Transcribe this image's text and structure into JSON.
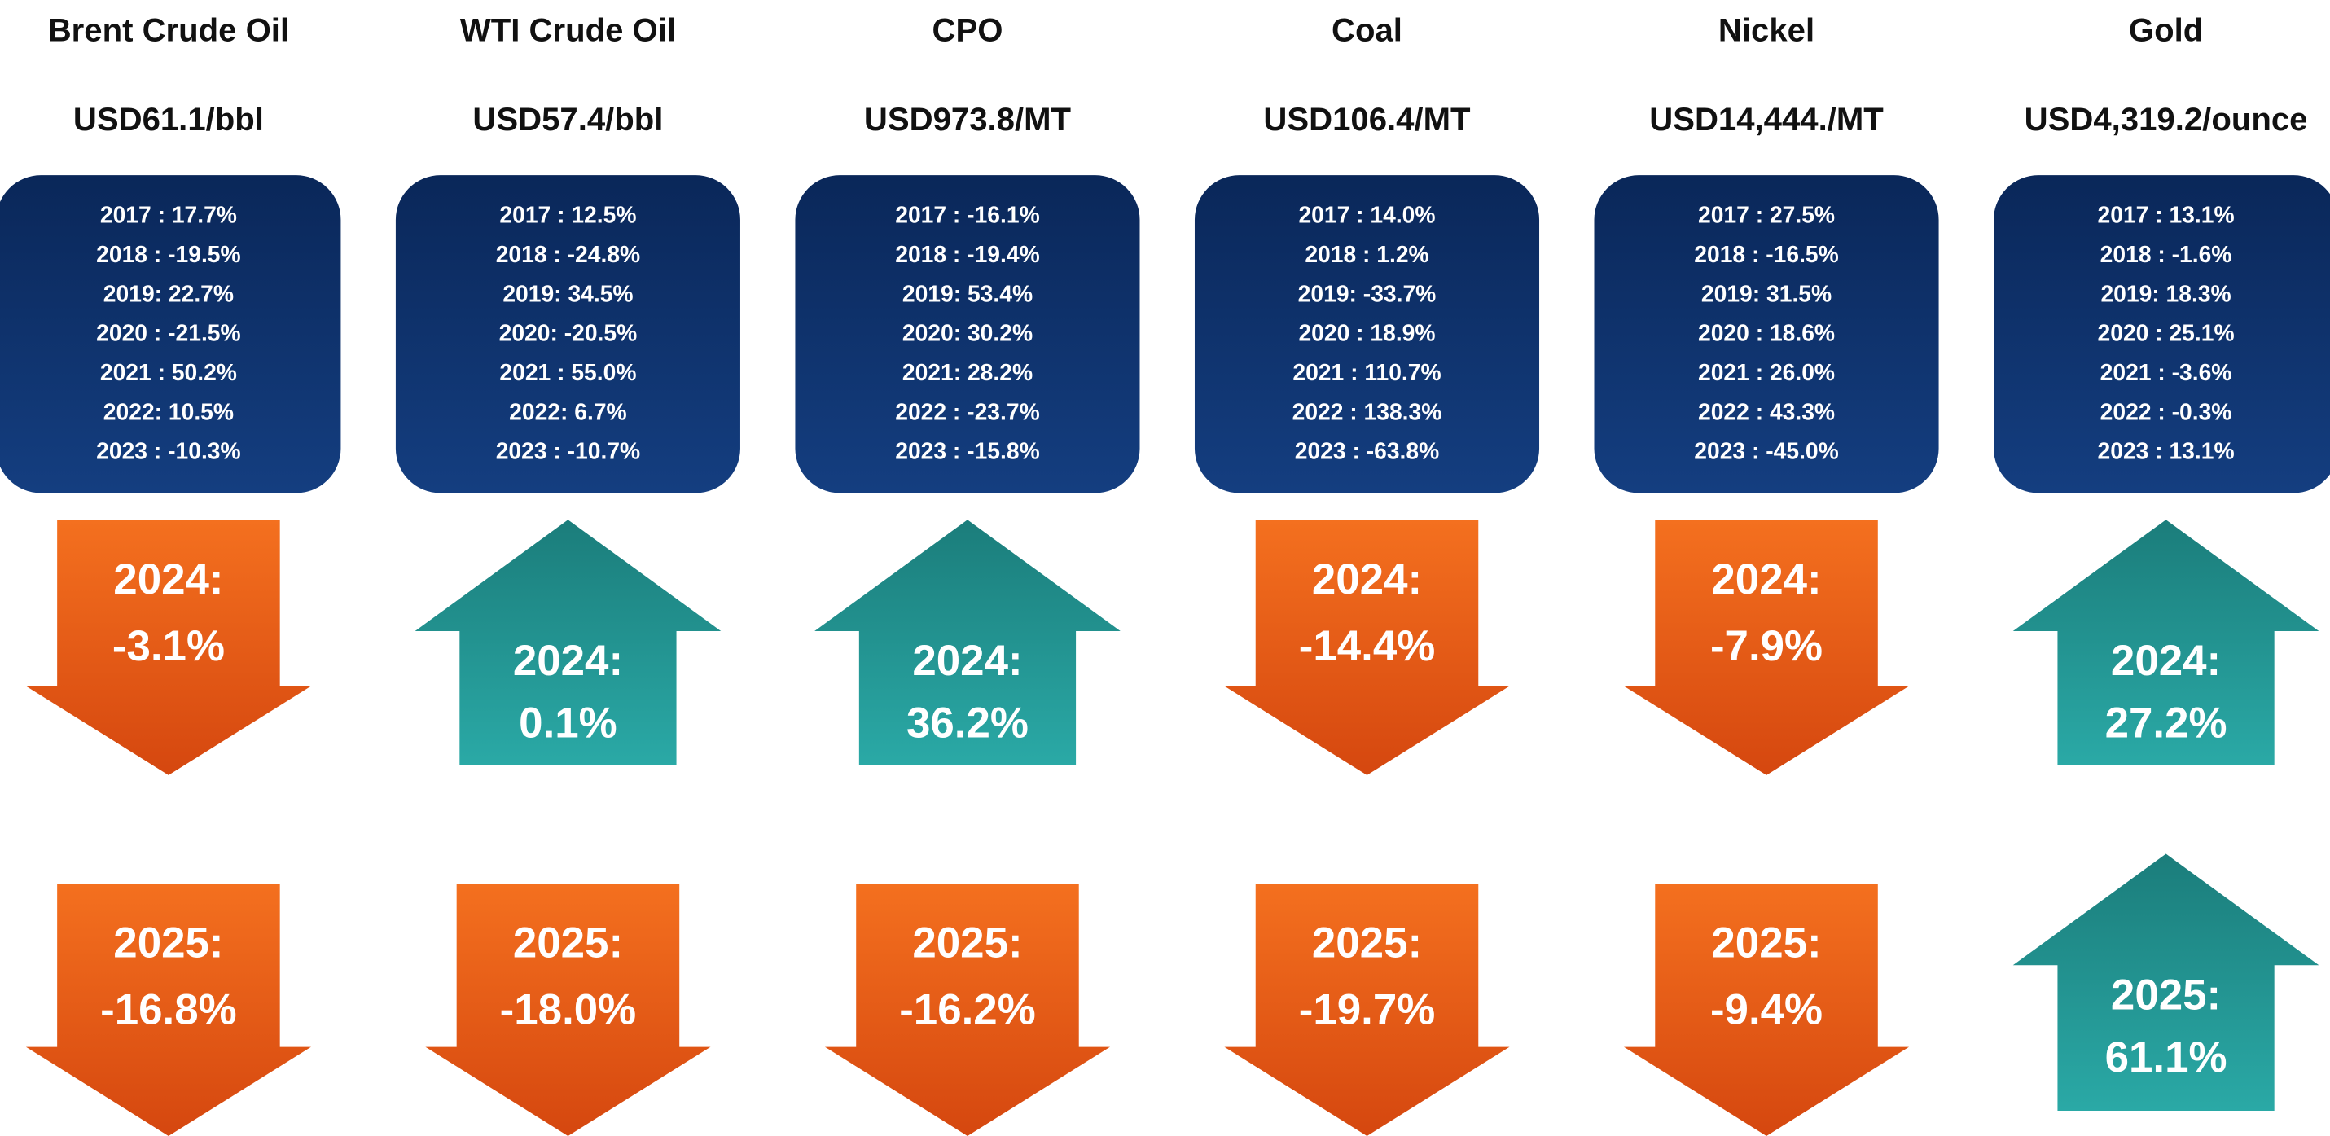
{
  "commodities": [
    {
      "name": "Brent Crude Oil",
      "price": "USD61.1/bbl",
      "history": [
        "2017 : 17.7%",
        "2018 : -19.5%",
        "2019: 22.7%",
        "2020 : -21.5%",
        "2021 : 50.2%",
        "2022: 10.5%",
        "2023 : -10.3%"
      ],
      "y2024": {
        "label": "2024:",
        "value": "-3.1%",
        "direction": "down"
      },
      "y2025": {
        "label": "2025:",
        "value": "-16.8%",
        "direction": "down"
      }
    },
    {
      "name": "WTI Crude Oil",
      "price": "USD57.4/bbl",
      "history": [
        "2017 : 12.5%",
        "2018 : -24.8%",
        "2019: 34.5%",
        "2020: -20.5%",
        "2021 : 55.0%",
        "2022: 6.7%",
        "2023 : -10.7%"
      ],
      "y2024": {
        "label": "2024:",
        "value": "0.1%",
        "direction": "up"
      },
      "y2025": {
        "label": "2025:",
        "value": "-18.0%",
        "direction": "down"
      }
    },
    {
      "name": "CPO",
      "price": "USD973.8/MT",
      "history": [
        "2017 : -16.1%",
        "2018 : -19.4%",
        "2019: 53.4%",
        "2020: 30.2%",
        "2021: 28.2%",
        "2022 : -23.7%",
        "2023 : -15.8%"
      ],
      "y2024": {
        "label": "2024:",
        "value": "36.2%",
        "direction": "up"
      },
      "y2025": {
        "label": "2025:",
        "value": "-16.2%",
        "direction": "down"
      }
    },
    {
      "name": "Coal",
      "price": "USD106.4/MT",
      "history": [
        "2017 : 14.0%",
        "2018 : 1.2%",
        "2019: -33.7%",
        "2020 : 18.9%",
        "2021 : 110.7%",
        "2022 : 138.3%",
        "2023 : -63.8%"
      ],
      "y2024": {
        "label": "2024:",
        "value": "-14.4%",
        "direction": "down"
      },
      "y2025": {
        "label": "2025:",
        "value": "-19.7%",
        "direction": "down"
      }
    },
    {
      "name": "Nickel",
      "price": "USD14,444./MT",
      "history": [
        "2017 : 27.5%",
        "2018 : -16.5%",
        "2019: 31.5%",
        "2020 : 18.6%",
        "2021 : 26.0%",
        "2022 : 43.3%",
        "2023 : -45.0%"
      ],
      "y2024": {
        "label": "2024:",
        "value": "-7.9%",
        "direction": "down"
      },
      "y2025": {
        "label": "2025:",
        "value": "-9.4%",
        "direction": "down"
      }
    },
    {
      "name": "Gold",
      "price": "USD4,319.2/ounce",
      "history": [
        "2017 : 13.1%",
        "2018 : -1.6%",
        "2019: 18.3%",
        "2020 : 25.1%",
        "2021 : -3.6%",
        "2022 : -0.3%",
        "2023 : 13.1%"
      ],
      "y2024": {
        "label": "2024:",
        "value": "27.2%",
        "direction": "up"
      },
      "y2025": {
        "label": "2025:",
        "value": "61.1%",
        "direction": "up"
      }
    }
  ]
}
